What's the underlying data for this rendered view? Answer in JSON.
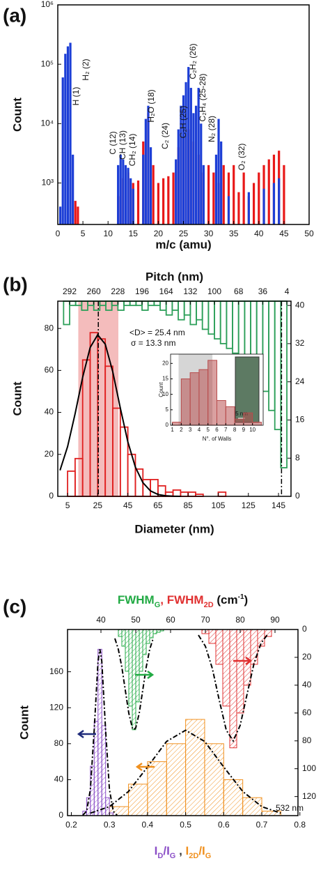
{
  "chart_data": [
    {
      "type": "bar",
      "label": "(a)",
      "xlabel": "m/c (amu)",
      "ylabel": "Count",
      "xlim": [
        0,
        50
      ],
      "xticks": [
        0,
        5,
        10,
        15,
        20,
        25,
        30,
        35,
        40,
        45,
        50
      ],
      "ylim": [
        200,
        1000000
      ],
      "yscale": "log",
      "yticks": [
        {
          "value": 1000,
          "label": "10³"
        },
        {
          "value": 10000,
          "label": "10⁴"
        },
        {
          "value": 100000,
          "label": "10⁵"
        },
        {
          "value": 1000000,
          "label": "10⁶"
        }
      ],
      "series": [
        {
          "color": "#e81818",
          "x": [
            3.5,
            4,
            12,
            13,
            14,
            15,
            16,
            17,
            18,
            19,
            20,
            21,
            22,
            23,
            24,
            25,
            26,
            27,
            28,
            29,
            30,
            31,
            32,
            33,
            34,
            35,
            36,
            37,
            38,
            39,
            40,
            41,
            42,
            43,
            44,
            45
          ],
          "values": [
            500,
            400,
            600,
            1200,
            1500,
            1000,
            1100,
            5000,
            15000,
            2000,
            1000,
            1200,
            1300,
            1500,
            4000,
            6000,
            8000,
            5000,
            3000,
            1500,
            2000,
            1500,
            1000,
            2000,
            1500,
            2000,
            700,
            1500,
            600,
            1000,
            1500,
            2000,
            2500,
            3000,
            3500,
            2000
          ]
        },
        {
          "color": "#1c3ed6",
          "x": [
            0.5,
            1,
            1.5,
            2,
            2.5,
            3,
            12,
            12.5,
            13,
            13.5,
            14,
            14.5,
            15,
            17,
            17.5,
            18,
            18.5,
            23.5,
            24,
            24.5,
            25,
            25.5,
            26,
            26.5,
            27,
            27.5,
            28,
            28.5,
            29,
            31.5,
            32,
            32.5,
            34,
            38,
            41,
            43,
            44
          ],
          "values": [
            400,
            60000,
            150000,
            200000,
            230000,
            3000,
            2000,
            3000,
            2500,
            2000,
            1800,
            1200,
            800,
            3000,
            12000,
            20000,
            4000,
            2500,
            8000,
            20000,
            30000,
            50000,
            90000,
            40000,
            15000,
            20000,
            40000,
            10000,
            2000,
            3000,
            12000,
            5000,
            600,
            700,
            800,
            1000,
            1200
          ]
        }
      ],
      "annotations": [
        "H (1)",
        "H₂ (2)",
        "C (12)",
        "CH (13)",
        "CH₂ (14)",
        "H₂O (18)",
        "C₂ (24)",
        "C₂H (25)",
        "C₂H₂ (26)",
        "C₂H₄ (25-28)",
        "N₂ (28)",
        "O₂ (32)"
      ]
    },
    {
      "type": "histogram",
      "label": "(b)",
      "xlabel": "Diameter (nm)",
      "x2label": "Pitch (nm)",
      "ylabel": "Count",
      "xlim": [
        -1.5,
        153.3
      ],
      "xticks": [
        5,
        25,
        45,
        65,
        85,
        105,
        125,
        145
      ],
      "x2lim": [
        307.7,
        -1.5
      ],
      "x2ticks": [
        292,
        260,
        228,
        196,
        164,
        132,
        100,
        68,
        36,
        4
      ],
      "ylim": [
        0,
        93
      ],
      "yticks": [
        0,
        20,
        40,
        60,
        80
      ],
      "y2lim": [
        0,
        40.9
      ],
      "y2ticks": [
        0,
        8,
        16,
        24,
        32,
        40
      ],
      "shade": [
        12.1,
        38.7
      ],
      "shade_color": "#f4bcbc",
      "vlines": [
        25.4,
        147
      ],
      "series": [
        {
          "color": "#e02020",
          "style": "outline",
          "bins": [
            5,
            10,
            15,
            20,
            25,
            30,
            35,
            40,
            45,
            50,
            55,
            60,
            65,
            70,
            75,
            80,
            85,
            90,
            95,
            100,
            105,
            110,
            115
          ],
          "values": [
            12,
            18,
            65,
            78,
            75,
            62,
            42,
            33,
            20,
            13,
            8,
            8,
            5,
            2,
            3,
            2,
            2,
            1,
            0,
            0,
            2,
            0
          ]
        },
        {
          "color": "#2ea05a",
          "style": "outline",
          "axis": "y2",
          "xaxis": "x2",
          "hang": true,
          "bins": [
            300,
            292,
            284,
            276,
            268,
            260,
            252,
            244,
            236,
            228,
            220,
            212,
            204,
            196,
            188,
            180,
            172,
            164,
            156,
            148,
            140,
            132,
            124,
            116,
            108,
            100,
            92,
            84,
            76,
            68,
            60,
            52,
            44,
            36,
            28,
            20,
            12,
            4
          ],
          "values": [
            36,
            40,
            40,
            39,
            40,
            39,
            40,
            39,
            40,
            39,
            40,
            40,
            40,
            39,
            40,
            40,
            39,
            38,
            39,
            37,
            38,
            36,
            37,
            35,
            34,
            33,
            32,
            31,
            30,
            29,
            28,
            25,
            27,
            22,
            18,
            14,
            6
          ]
        }
      ],
      "fits": [
        {
          "color": "#000000",
          "linestyle": "solid",
          "x": [
            0,
            5,
            10,
            15,
            20,
            25,
            30,
            35,
            40,
            45,
            50,
            55,
            60,
            65,
            70,
            75,
            80
          ],
          "y": [
            12.4,
            23.7,
            39.4,
            56.7,
            70.9,
            77.0,
            72.5,
            59.3,
            42.1,
            26.0,
            13.9,
            6.5,
            2.6,
            0.9,
            0.3,
            0.1,
            0.0
          ]
        }
      ],
      "annotations": [
        "<D> = 25.4 nm",
        "σ = 13.3 nm"
      ],
      "inset": {
        "type": "histogram",
        "xlabel": "N°. of Walls",
        "ylabel": "Count",
        "xlim": [
          0.8,
          11.2
        ],
        "xticks": [
          1,
          2,
          3,
          4,
          5,
          6,
          7,
          8,
          9,
          10
        ],
        "ylim": [
          0,
          23
        ],
        "yticks": [
          0,
          5,
          10,
          15,
          20
        ],
        "shade": [
          1.7,
          5.5
        ],
        "shade_color": "#d6d6d6",
        "series": [
          {
            "color": "#b84c4c",
            "style": "filled",
            "bins": [
              1,
              2,
              3,
              4,
              5,
              6,
              7,
              8,
              9,
              10,
              11
            ],
            "values": [
              1,
              15,
              17,
              18,
              21,
              8,
              6,
              2,
              4,
              1
            ]
          }
        ],
        "image_label": "5 nm"
      }
    },
    {
      "type": "histogram",
      "label": "(c)",
      "ylabel": "Count",
      "xlabel_parts": [
        "I",
        "D",
        "/I",
        "G",
        " , ",
        "I",
        "2D",
        "/I",
        "G"
      ],
      "x2label_parts": [
        "FWHM",
        "G",
        ", ",
        "FWHM",
        "2D",
        " (cm",
        "-1",
        ")"
      ],
      "xlim": [
        0.19,
        0.795
      ],
      "xticks": [
        0.2,
        0.3,
        0.4,
        0.5,
        0.6,
        0.7,
        0.8
      ],
      "x2lim": [
        30.4,
        96.6
      ],
      "x2ticks": [
        40,
        50,
        60,
        70,
        80,
        90
      ],
      "ylim": [
        0,
        207
      ],
      "yticks": [
        0,
        40,
        80,
        120,
        160
      ],
      "y2lim": [
        133.7,
        0
      ],
      "y2ticks": [
        0,
        20,
        40,
        60,
        80,
        100,
        120
      ],
      "series": [
        {
          "color": "#f0901e",
          "style": "hatch",
          "bins": [
            0.3,
            0.35,
            0.4,
            0.45,
            0.5,
            0.55,
            0.6,
            0.65,
            0.7,
            0.75
          ],
          "values": [
            10,
            35,
            60,
            80,
            107,
            80,
            40,
            20,
            5
          ]
        },
        {
          "color": "#8b4fc7",
          "style": "hatch",
          "bins": [
            0.23,
            0.24,
            0.25,
            0.26,
            0.27,
            0.28,
            0.29,
            0.3,
            0.31
          ],
          "values": [
            5,
            20,
            55,
            105,
            185,
            100,
            20,
            3
          ]
        },
        {
          "color": "#22aa44",
          "style": "hatch",
          "axis": "y2",
          "xaxis": "x2",
          "bins": [
            45,
            46,
            47,
            48,
            49,
            50,
            51,
            52,
            53,
            54,
            55,
            56,
            57,
            58
          ],
          "values": [
            5,
            12,
            30,
            55,
            72,
            52,
            30,
            18,
            10,
            6,
            3,
            2,
            1
          ]
        },
        {
          "color": "#e03030",
          "style": "hatch",
          "axis": "y2",
          "xaxis": "x2",
          "bins": [
            69,
            71,
            73,
            75,
            77,
            79,
            81,
            83,
            85,
            87,
            89
          ],
          "values": [
            3,
            10,
            25,
            55,
            85,
            60,
            40,
            25,
            12,
            5
          ]
        }
      ],
      "fits": [
        {
          "color": "#000000",
          "linestyle": "dashdot",
          "x": [
            0.23,
            0.24,
            0.25,
            0.26,
            0.27,
            0.275,
            0.28,
            0.29,
            0.3,
            0.31,
            0.32
          ],
          "y": [
            0.5,
            4.9,
            29.1,
            95.1,
            171.8,
            185,
            171.8,
            95.1,
            29.1,
            4.9,
            0.5
          ]
        },
        {
          "color": "#000000",
          "linestyle": "dashdot",
          "x": [
            0.25,
            0.3,
            0.35,
            0.4,
            0.45,
            0.5,
            0.55,
            0.6,
            0.65,
            0.7,
            0.75
          ],
          "y": [
            2.8,
            10.0,
            26.8,
            54.1,
            82.5,
            95,
            82.5,
            54.1,
            26.8,
            10.0,
            2.8
          ]
        },
        {
          "color": "#000000",
          "linestyle": "dashdot",
          "axis": "y2",
          "xaxis": "x2",
          "x": [
            44,
            45,
            46,
            47,
            48,
            49,
            49.5,
            50,
            51,
            52,
            53,
            54,
            55
          ],
          "y": [
            6.4,
            14.3,
            27.0,
            43.7,
            60.1,
            70.6,
            72,
            70.6,
            60.1,
            43.7,
            27.0,
            14.3,
            6.4
          ]
        },
        {
          "color": "#000000",
          "linestyle": "dashdot",
          "axis": "y2",
          "xaxis": "x2",
          "x": [
            68,
            70,
            72,
            74,
            76,
            78,
            80,
            82,
            84,
            86,
            88
          ],
          "y": [
            4.0,
            12.0,
            28.0,
            51.0,
            72.3,
            80,
            68.8,
            46.2,
            24.1,
            9.8,
            3.1
          ]
        }
      ],
      "annotations": [
        "532 nm"
      ]
    }
  ]
}
